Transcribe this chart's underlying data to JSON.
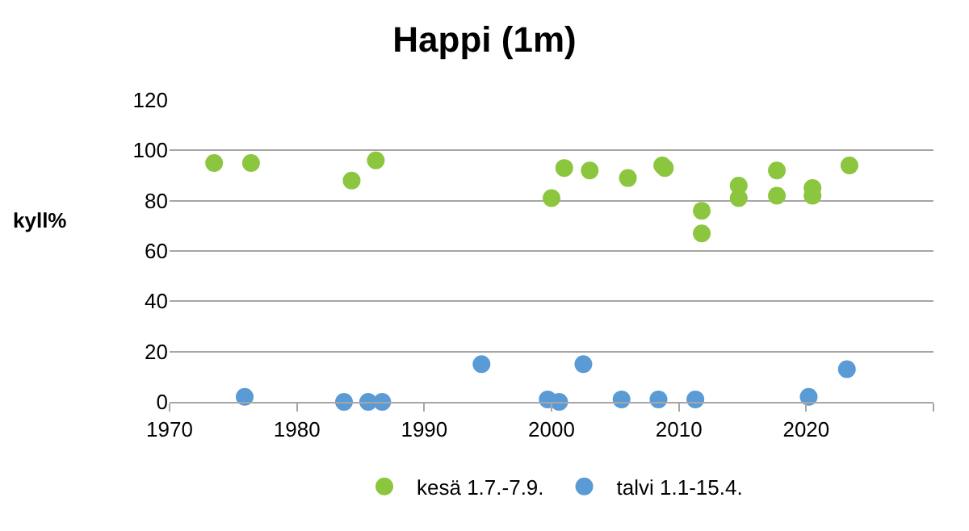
{
  "chart_data": {
    "type": "scatter",
    "title": "Happi (1m)",
    "ylabel": "kyll%",
    "xlim": [
      1970,
      2030
    ],
    "xticks": [
      1970,
      1980,
      1990,
      2000,
      2010,
      2020,
      {
        "value": 2030,
        "label": null
      }
    ],
    "ylim": [
      0,
      120
    ],
    "yticks": [
      0,
      20,
      40,
      60,
      80,
      100,
      120
    ],
    "grid": "y",
    "legend": "bottom",
    "marker": "circle",
    "series": [
      {
        "name": "kesä 1.7.-7.9.",
        "color": "#8cc63f",
        "x": [
          1973.5,
          1976.4,
          1984.3,
          1986.2,
          2000,
          2001,
          2003,
          2006,
          2008.7,
          2008.9,
          2011.8,
          2011.8,
          2014.7,
          2014.7,
          2017.7,
          2017.7,
          2020.5,
          2020.5,
          2023.4
        ],
        "values": [
          95,
          95,
          88,
          96,
          81,
          93,
          92,
          89,
          94,
          93,
          76,
          67,
          86,
          81,
          92,
          82,
          85,
          82,
          94
        ]
      },
      {
        "name": "talvi 1.1-15.4.",
        "color": "#5b9bd5",
        "x": [
          1975.9,
          1983.7,
          1985.6,
          1986.7,
          1994.5,
          1999.7,
          2000.6,
          2002.5,
          2005.5,
          2008.4,
          2011.3,
          2020.2,
          2023.2
        ],
        "values": [
          2,
          0,
          0,
          0,
          15,
          1,
          0,
          15,
          1,
          1,
          1,
          2,
          13
        ]
      }
    ]
  }
}
